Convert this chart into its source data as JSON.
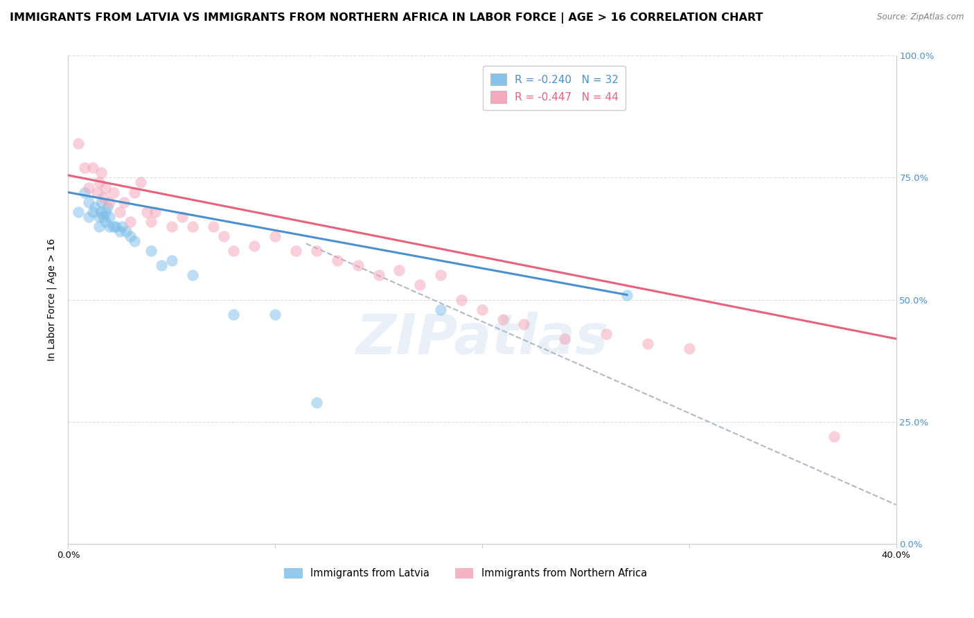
{
  "title": "IMMIGRANTS FROM LATVIA VS IMMIGRANTS FROM NORTHERN AFRICA IN LABOR FORCE | AGE > 16 CORRELATION CHART",
  "source": "Source: ZipAtlas.com",
  "ylabel": "In Labor Force | Age > 16",
  "xlabel": "",
  "legend_blue_R": "-0.240",
  "legend_blue_N": "32",
  "legend_pink_R": "-0.447",
  "legend_pink_N": "44",
  "legend_label_blue": "Immigrants from Latvia",
  "legend_label_pink": "Immigrants from Northern Africa",
  "xlim": [
    0.0,
    0.4
  ],
  "ylim": [
    0.0,
    1.0
  ],
  "xticks": [
    0.0,
    0.1,
    0.2,
    0.3,
    0.4
  ],
  "yticks": [
    0.0,
    0.25,
    0.5,
    0.75,
    1.0
  ],
  "xticklabels": [
    "0.0%",
    "",
    "",
    "",
    "40.0%"
  ],
  "yticklabels": [
    "",
    "",
    "",
    "",
    ""
  ],
  "right_yticklabels": [
    "0.0%",
    "25.0%",
    "50.0%",
    "75.0%",
    "100.0%"
  ],
  "blue_scatter_x": [
    0.005,
    0.008,
    0.01,
    0.01,
    0.012,
    0.013,
    0.015,
    0.015,
    0.016,
    0.016,
    0.017,
    0.018,
    0.018,
    0.019,
    0.02,
    0.02,
    0.022,
    0.023,
    0.025,
    0.026,
    0.028,
    0.03,
    0.032,
    0.04,
    0.045,
    0.05,
    0.06,
    0.08,
    0.1,
    0.12,
    0.18,
    0.27
  ],
  "blue_scatter_y": [
    0.68,
    0.72,
    0.67,
    0.7,
    0.68,
    0.69,
    0.65,
    0.67,
    0.68,
    0.7,
    0.67,
    0.66,
    0.68,
    0.69,
    0.65,
    0.67,
    0.65,
    0.65,
    0.64,
    0.65,
    0.64,
    0.63,
    0.62,
    0.6,
    0.57,
    0.58,
    0.55,
    0.47,
    0.47,
    0.29,
    0.48,
    0.51
  ],
  "pink_scatter_x": [
    0.005,
    0.008,
    0.01,
    0.012,
    0.014,
    0.015,
    0.016,
    0.017,
    0.018,
    0.02,
    0.022,
    0.025,
    0.027,
    0.03,
    0.032,
    0.035,
    0.038,
    0.04,
    0.042,
    0.05,
    0.055,
    0.06,
    0.07,
    0.075,
    0.08,
    0.09,
    0.1,
    0.11,
    0.12,
    0.13,
    0.14,
    0.15,
    0.16,
    0.17,
    0.18,
    0.19,
    0.2,
    0.21,
    0.22,
    0.24,
    0.26,
    0.28,
    0.3,
    0.37
  ],
  "pink_scatter_y": [
    0.82,
    0.77,
    0.73,
    0.77,
    0.72,
    0.74,
    0.76,
    0.71,
    0.73,
    0.7,
    0.72,
    0.68,
    0.7,
    0.66,
    0.72,
    0.74,
    0.68,
    0.66,
    0.68,
    0.65,
    0.67,
    0.65,
    0.65,
    0.63,
    0.6,
    0.61,
    0.63,
    0.6,
    0.6,
    0.58,
    0.57,
    0.55,
    0.56,
    0.53,
    0.55,
    0.5,
    0.48,
    0.46,
    0.45,
    0.42,
    0.43,
    0.41,
    0.4,
    0.22
  ],
  "blue_line_x": [
    0.0,
    0.27
  ],
  "blue_line_y": [
    0.72,
    0.51
  ],
  "pink_line_x": [
    0.0,
    0.4
  ],
  "pink_line_y": [
    0.755,
    0.42
  ],
  "gray_line_x": [
    0.115,
    0.4
  ],
  "gray_line_y": [
    0.615,
    0.08
  ],
  "blue_color": "#7bbde8",
  "pink_color": "#f4a0b5",
  "blue_line_color": "#4a90d0",
  "pink_line_color": "#e8607a",
  "gray_line_color": "#b0b8c8",
  "watermark": "ZIPatlas",
  "title_fontsize": 11.5,
  "axis_fontsize": 10,
  "tick_fontsize": 9.5
}
